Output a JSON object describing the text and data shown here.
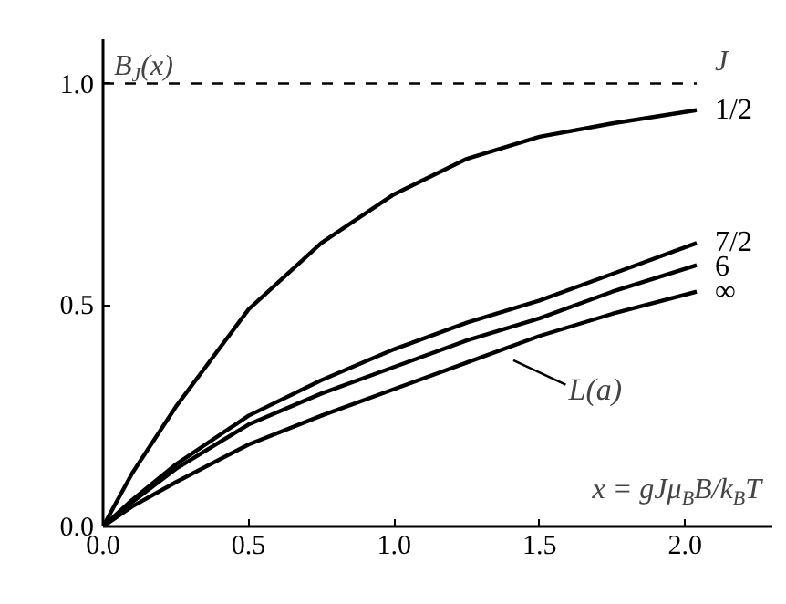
{
  "chart_data": {
    "type": "line",
    "ylabel": "B$_{J}$(x)",
    "xlabel": "x = gJμ$_{B}$B/k$_{B}$T",
    "legend_title": "J",
    "xlim": [
      0,
      2.3
    ],
    "ylim": [
      0,
      1.1
    ],
    "xticks": [
      {
        "value": 0,
        "label": "0.0"
      },
      {
        "value": 0.5,
        "label": "0.5"
      },
      {
        "value": 1,
        "label": "1.0"
      },
      {
        "value": 1.5,
        "label": "1.5"
      },
      {
        "value": 2,
        "label": "2.0"
      }
    ],
    "yticks": [
      {
        "value": 0,
        "label": "0.0"
      },
      {
        "value": 0.5,
        "label": "0.5"
      },
      {
        "value": 1,
        "label": "1.0"
      }
    ],
    "x": [
      0,
      0.1,
      0.25,
      0.5,
      0.75,
      1.0,
      1.25,
      1.5,
      1.75,
      2.04
    ],
    "series": [
      {
        "name": "1/2",
        "color": "#000000",
        "values": [
          0,
          0.12,
          0.27,
          0.49,
          0.64,
          0.75,
          0.83,
          0.88,
          0.91,
          0.94
        ]
      },
      {
        "name": "7/2",
        "color": "#000000",
        "values": [
          0,
          0.06,
          0.14,
          0.25,
          0.33,
          0.4,
          0.46,
          0.51,
          0.57,
          0.64
        ]
      },
      {
        "name": "6",
        "color": "#000000",
        "values": [
          0,
          0.055,
          0.13,
          0.23,
          0.3,
          0.36,
          0.42,
          0.47,
          0.53,
          0.59
        ]
      },
      {
        "name": "∞",
        "color": "#000000",
        "values": [
          0,
          0.045,
          0.1,
          0.185,
          0.25,
          0.31,
          0.37,
          0.43,
          0.48,
          0.53
        ]
      }
    ],
    "ref_lines": [
      {
        "axis": "y",
        "value": 1.0,
        "label": null,
        "line_style": "dashed",
        "color": "#000000"
      }
    ],
    "annotations": [
      {
        "text": "L(a)",
        "x": 1.41,
        "y": 0.4
      }
    ],
    "grid": false,
    "marker": "none",
    "line_style": "solid"
  }
}
